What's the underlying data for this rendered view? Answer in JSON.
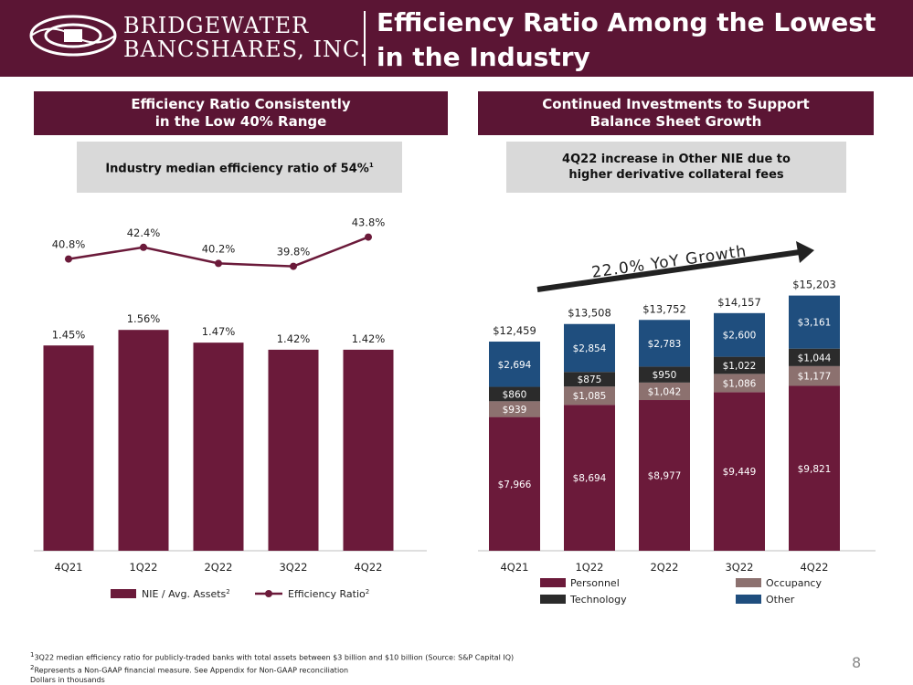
{
  "header": {
    "logo_line1": "BRIDGEWATER",
    "logo_line2": "BANCSHARES, INC.",
    "title": "Efficiency Ratio Among the Lowest in the Industry",
    "bg_color": "#5b1534"
  },
  "left_panel": {
    "section_title_line1": "Efficiency Ratio Consistently",
    "section_title_line2": "in the Low 40% Range",
    "callout": "Industry median efficiency ratio of 54%",
    "callout_sup": "1"
  },
  "right_panel": {
    "section_title_line1": "Continued Investments to Support",
    "section_title_line2": "Balance Sheet Growth",
    "callout_line1": "4Q22 increase in Other NIE due to",
    "callout_line2": "higher derivative collateral fees",
    "growth_label": "22.0% YoY Growth"
  },
  "chart_data": [
    {
      "type": "bar",
      "title": "Efficiency Ratio Consistently in the Low 40% Range",
      "categories": [
        "4Q21",
        "1Q22",
        "2Q22",
        "3Q22",
        "4Q22"
      ],
      "series": [
        {
          "name": "NIE / Avg. Assets",
          "legend_sup": "2",
          "kind": "bar",
          "color": "#6b1a3a",
          "values": [
            1.45,
            1.56,
            1.47,
            1.42,
            1.42
          ],
          "labels": [
            "1.45%",
            "1.56%",
            "1.47%",
            "1.42%",
            "1.42%"
          ]
        },
        {
          "name": "Efficiency Ratio",
          "legend_sup": "2",
          "kind": "line",
          "color": "#6b1a3a",
          "values": [
            40.8,
            42.4,
            40.2,
            39.8,
            43.8
          ],
          "labels": [
            "40.8%",
            "42.4%",
            "40.2%",
            "39.8%",
            "43.8%"
          ]
        }
      ],
      "bar_ylim": [
        0,
        1.6
      ],
      "line_ylim": [
        37.5,
        45
      ]
    },
    {
      "type": "bar",
      "stacked": true,
      "title": "Continued Investments to Support Balance Sheet Growth",
      "categories": [
        "4Q21",
        "1Q22",
        "2Q22",
        "3Q22",
        "4Q22"
      ],
      "series": [
        {
          "name": "Personnel",
          "color": "#6b1a3a",
          "values": [
            7966,
            8694,
            8977,
            9449,
            9821
          ],
          "labels": [
            "$7,966",
            "$8,694",
            "$8,977",
            "$9,449",
            "$9,821"
          ]
        },
        {
          "name": "Occupancy",
          "color": "#8c716f",
          "values": [
            939,
            1085,
            1042,
            1086,
            1177
          ],
          "labels": [
            "$939",
            "$1,085",
            "$1,042",
            "$1,086",
            "$1,177"
          ]
        },
        {
          "name": "Technology",
          "color": "#2b2b2b",
          "values": [
            860,
            875,
            950,
            1022,
            1044
          ],
          "labels": [
            "$860",
            "$875",
            "$950",
            "$1,022",
            "$1,044"
          ]
        },
        {
          "name": "Other",
          "color": "#1f4e7e",
          "values": [
            2694,
            2854,
            2783,
            2600,
            3161
          ],
          "labels": [
            "$2,694",
            "$2,854",
            "$2,783",
            "$2,600",
            "$3,161"
          ]
        }
      ],
      "totals": [
        "$12,459",
        "$13,508",
        "$13,752",
        "$14,157",
        "$15,203"
      ],
      "total_values": [
        12459,
        13508,
        13752,
        14157,
        15203
      ],
      "ylim": [
        0,
        18500
      ],
      "annotation": "22.0% YoY Growth"
    }
  ],
  "footnotes": {
    "note1_sup": "1",
    "note1": "3Q22 median efficiency ratio for publicly-traded banks with total assets between $3 billion and $10 billion (Source: S&P Capital IQ)",
    "note2_sup": "2",
    "note2": "Represents a Non-GAAP financial measure. See Appendix for Non-GAAP reconciliation",
    "note3": "Dollars in thousands"
  },
  "page_number": "8"
}
